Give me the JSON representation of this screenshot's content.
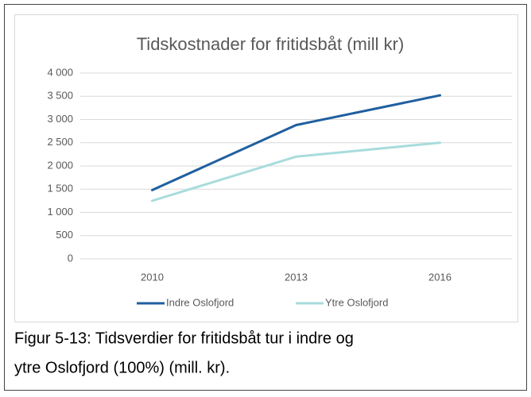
{
  "chart_data": {
    "type": "line",
    "title": "Tidskostnader for fritidsbåt (mill kr)",
    "categories": [
      "2010",
      "2013",
      "2016"
    ],
    "series": [
      {
        "name": "Indre Oslofjord",
        "color": "#1f5f9f",
        "values": [
          1480,
          2880,
          3520
        ]
      },
      {
        "name": "Ytre Oslofjord",
        "color": "#a9dcdc",
        "values": [
          1250,
          2200,
          2500
        ]
      }
    ],
    "ylim": [
      0,
      4000
    ],
    "yticks": [
      0,
      500,
      {
        "value": 1000,
        "label": "1 000"
      },
      {
        "value": 1500,
        "label": "1 500"
      },
      {
        "value": 2000,
        "label": "2 000"
      },
      {
        "value": 2500,
        "label": "2 500"
      },
      {
        "value": 3000,
        "label": "3 000"
      },
      {
        "value": 3500,
        "label": "3 500"
      },
      {
        "value": 4000,
        "label": "4 000"
      }
    ],
    "grid": true,
    "legend": "bottom"
  },
  "caption": [
    "Figur 5-13: Tidsverdier for fritidsbåt tur i indre og",
    "ytre Oslofjord (100%) (mill. kr)."
  ]
}
